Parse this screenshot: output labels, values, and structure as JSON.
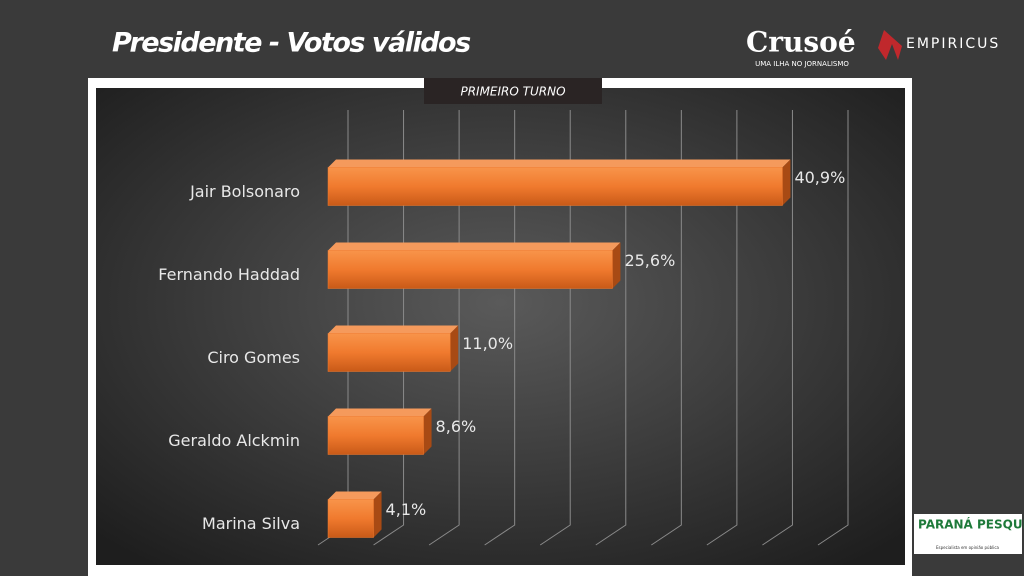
{
  "header": {
    "title": "Presidente - Votos válidos",
    "brand": "Crusoé",
    "brand_tagline": "UMA ILHA NO JORNALISMO",
    "partner": "EMPIRICUS",
    "pollster": "PARANÁ PESQUISAS",
    "pollster_tagline": "Especialista em opinião pública"
  },
  "chart_data": {
    "type": "bar",
    "orientation": "horizontal",
    "title": "PRIMEIRO TURNO",
    "categories": [
      "Jair Bolsonaro",
      "Fernando Haddad",
      "Ciro Gomes",
      "Geraldo Alckmin",
      "Marina Silva"
    ],
    "values": [
      40.9,
      25.6,
      11.0,
      8.6,
      4.1
    ],
    "value_labels": [
      "40,9%",
      "25,6%",
      "11,0%",
      "8,6%",
      "4,1%"
    ],
    "color": "#f07a2e",
    "xlim": [
      0,
      45
    ],
    "xticks": [
      0,
      5,
      10,
      15,
      20,
      25,
      30,
      35,
      40,
      45
    ],
    "grid": true
  }
}
